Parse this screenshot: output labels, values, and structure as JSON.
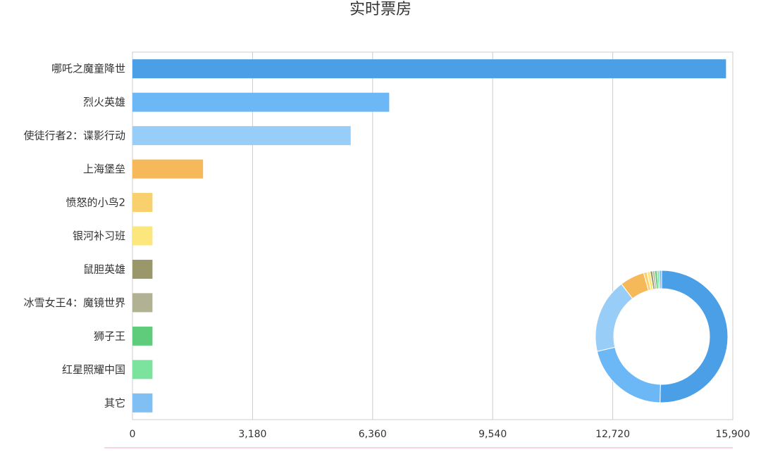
{
  "chart_data": [
    {
      "type": "bar",
      "orientation": "horizontal",
      "title": "实时票房",
      "xlabel": "",
      "ylabel": "",
      "categories": [
        "哪吒之魔童降世",
        "烈火英雄",
        "使徒行者2：谍影行动",
        "上海堡垒",
        "愤怒的小鸟2",
        "银河补习班",
        "鼠胆英雄",
        "冰雪女王4：魔镜世界",
        "狮子王",
        "红星照耀中国",
        "其它"
      ],
      "values": [
        15720,
        6800,
        5780,
        1870,
        530,
        530,
        530,
        530,
        530,
        530,
        530
      ],
      "colors": [
        "#4a9fe6",
        "#6cb7f5",
        "#97cdf7",
        "#f5b95a",
        "#f9d06e",
        "#fbe77b",
        "#9a976a",
        "#b1b194",
        "#5fcc7c",
        "#7ce39f",
        "#7fbff3"
      ],
      "xlim": [
        0,
        15900
      ],
      "xticks": [
        0,
        3180,
        6360,
        9540,
        12720,
        15900
      ],
      "xtick_labels": [
        "0",
        "3,180",
        "6,360",
        "9,540",
        "12,720",
        "15,900"
      ],
      "grid": true
    },
    {
      "type": "pie",
      "style": "donut",
      "labels": [
        "哪吒之魔童降世",
        "烈火英雄",
        "使徒行者2：谍影行动",
        "上海堡垒",
        "愤怒的小鸟2",
        "银河补习班",
        "鼠胆英雄",
        "冰雪女王4：魔镜世界",
        "狮子王",
        "红星照耀中国",
        "其它"
      ],
      "values": [
        50.4,
        21.0,
        18.2,
        6.0,
        0.8,
        0.8,
        0.6,
        0.5,
        0.6,
        0.5,
        0.6
      ],
      "colors": [
        "#4a9fe6",
        "#6cb7f5",
        "#97cdf7",
        "#f5b95a",
        "#f9d06e",
        "#fbe77b",
        "#9a976a",
        "#b1b194",
        "#5fcc7c",
        "#7ce39f",
        "#7fbff3"
      ]
    }
  ]
}
